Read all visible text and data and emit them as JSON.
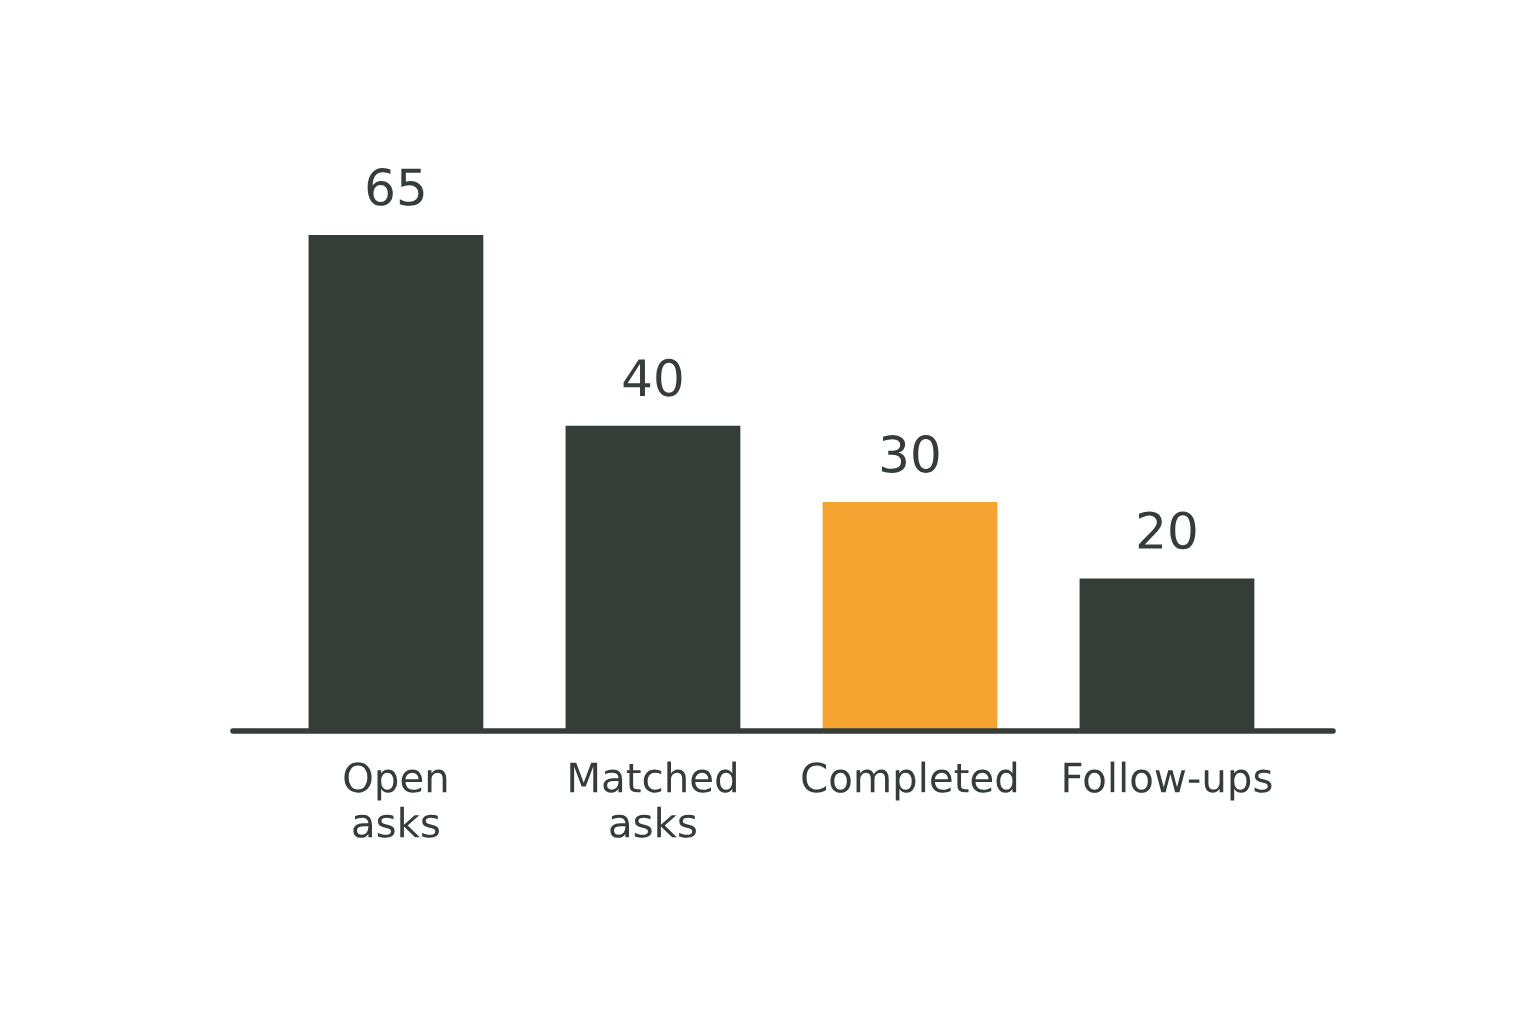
{
  "chart_data": {
    "type": "bar",
    "categories": [
      "Open\nasks",
      "Matched\nasks",
      "Completed",
      "Follow-ups"
    ],
    "values": [
      65,
      40,
      30,
      20
    ],
    "colors": [
      "#353d39",
      "#353d39",
      "#f5a431",
      "#353d39"
    ],
    "data_labels": true,
    "grid": false,
    "legend": false
  }
}
